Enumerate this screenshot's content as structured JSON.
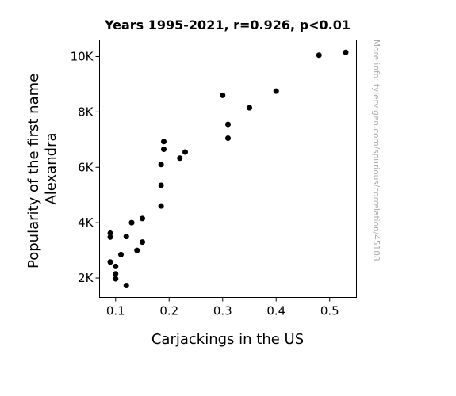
{
  "chart_data": {
    "type": "scatter",
    "title": "Years 1995-2021, r=0.926, p<0.01",
    "xlabel": "Carjackings in the US",
    "ylabel_lines": [
      "Popularity of the first name",
      "Alexandra"
    ],
    "watermark": "More info: tylervigen.com/spurious/correlation/45108",
    "xlim": [
      0.07,
      0.55
    ],
    "ylim": [
      1300,
      10600
    ],
    "x_ticks": [
      {
        "value": 0.1,
        "label": "0.1"
      },
      {
        "value": 0.2,
        "label": "0.2"
      },
      {
        "value": 0.3,
        "label": "0.3"
      },
      {
        "value": 0.4,
        "label": "0.4"
      },
      {
        "value": 0.5,
        "label": "0.5"
      }
    ],
    "y_ticks": [
      {
        "value": 2000,
        "label": "2K"
      },
      {
        "value": 4000,
        "label": "4K"
      },
      {
        "value": 6000,
        "label": "6K"
      },
      {
        "value": 8000,
        "label": "8K"
      },
      {
        "value": 10000,
        "label": "10K"
      }
    ],
    "grid": false,
    "marker_color": "#000000",
    "points": [
      {
        "x": 0.53,
        "y": 10150
      },
      {
        "x": 0.48,
        "y": 10050
      },
      {
        "x": 0.4,
        "y": 8750
      },
      {
        "x": 0.35,
        "y": 8150
      },
      {
        "x": 0.3,
        "y": 8600
      },
      {
        "x": 0.31,
        "y": 7550
      },
      {
        "x": 0.31,
        "y": 7050
      },
      {
        "x": 0.23,
        "y": 6550
      },
      {
        "x": 0.22,
        "y": 6330
      },
      {
        "x": 0.19,
        "y": 6930
      },
      {
        "x": 0.19,
        "y": 6650
      },
      {
        "x": 0.185,
        "y": 6100
      },
      {
        "x": 0.185,
        "y": 5350
      },
      {
        "x": 0.185,
        "y": 4600
      },
      {
        "x": 0.15,
        "y": 4150
      },
      {
        "x": 0.13,
        "y": 4000
      },
      {
        "x": 0.09,
        "y": 3620
      },
      {
        "x": 0.09,
        "y": 3480
      },
      {
        "x": 0.12,
        "y": 3500
      },
      {
        "x": 0.15,
        "y": 3300
      },
      {
        "x": 0.14,
        "y": 3000
      },
      {
        "x": 0.11,
        "y": 2850
      },
      {
        "x": 0.09,
        "y": 2580
      },
      {
        "x": 0.1,
        "y": 2420
      },
      {
        "x": 0.1,
        "y": 2150
      },
      {
        "x": 0.1,
        "y": 1970
      },
      {
        "x": 0.12,
        "y": 1730
      }
    ]
  }
}
